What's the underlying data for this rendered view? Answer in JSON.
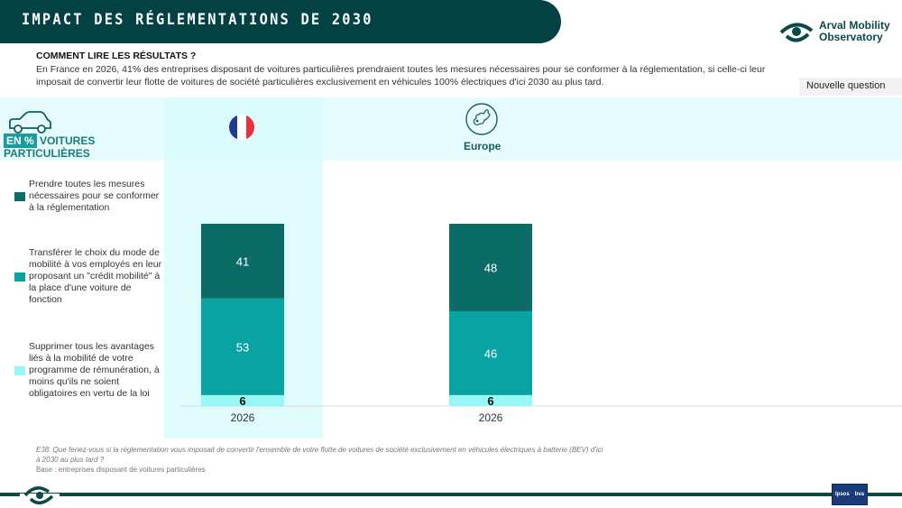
{
  "header": {
    "title": "IMPACT DES RÉGLEMENTATIONS DE 2030",
    "brand_line1": "Arval Mobility",
    "brand_line2": "Observatory"
  },
  "howto": {
    "title": "COMMENT LIRE LES RÉSULTATS ?",
    "text": "En France en 2026, 41% des entreprises disposant de voitures particulières prendraient toutes les mesures nécessaires pour se conformer à la réglementation, si celle-ci leur imposait de convertir leur flotte de voitures de société particulières exclusivement en véhicules 100% électriques d'ici 2030 au plus tard."
  },
  "new_question_label": "Nouvelle question",
  "segment": {
    "badge": "EN %",
    "label_line1": "VOITURES",
    "label_line2": "PARTICULIÈRES",
    "icon": "car-icon"
  },
  "columns": [
    {
      "name": "France",
      "icon": "france-flag-icon"
    },
    {
      "name": "Europe",
      "icon": "europe-map-icon",
      "label": "Europe"
    }
  ],
  "colors": {
    "dark_teal": "#0b6b66",
    "teal": "#0aa3a3",
    "light_cyan": "#97f6f6",
    "title_bg": "#034244"
  },
  "chart_data": {
    "type": "bar",
    "stacked": true,
    "unit": "%",
    "groups": [
      "France",
      "Europe"
    ],
    "categories": [
      "2026",
      "2026"
    ],
    "series": [
      {
        "name": "Prendre toutes les mesures nécessaires pour se conformer à la réglementation",
        "color": "#0b6b66",
        "values": [
          41,
          48
        ]
      },
      {
        "name": "Transférer le choix du mode de mobilité à vos employés en leur proposant un \"crédit mobilité\" à la place d'une voiture de fonction",
        "color": "#0aa3a3",
        "values": [
          53,
          46
        ]
      },
      {
        "name": "Supprimer tous les avantages liés à la mobilité de votre programme de rémunération, à moins qu'ils ne soient obligatoires en vertu de la loi",
        "color": "#97f6f6",
        "values": [
          6,
          6
        ]
      }
    ],
    "ylim": [
      0,
      100
    ],
    "legend": "left",
    "grid": false
  },
  "footnote": {
    "question": "E38. Que feriez-vous si la réglementation vous imposait de convertir l'ensemble de votre flotte de voitures de société exclusivement en véhicules électriques à batterie (BEV) d'ici à 2030 au plus tard ?",
    "base": "Base : entreprises disposant de voitures particulières"
  },
  "footer": {
    "ipsos": "Ipsos",
    "bva": "bva"
  }
}
